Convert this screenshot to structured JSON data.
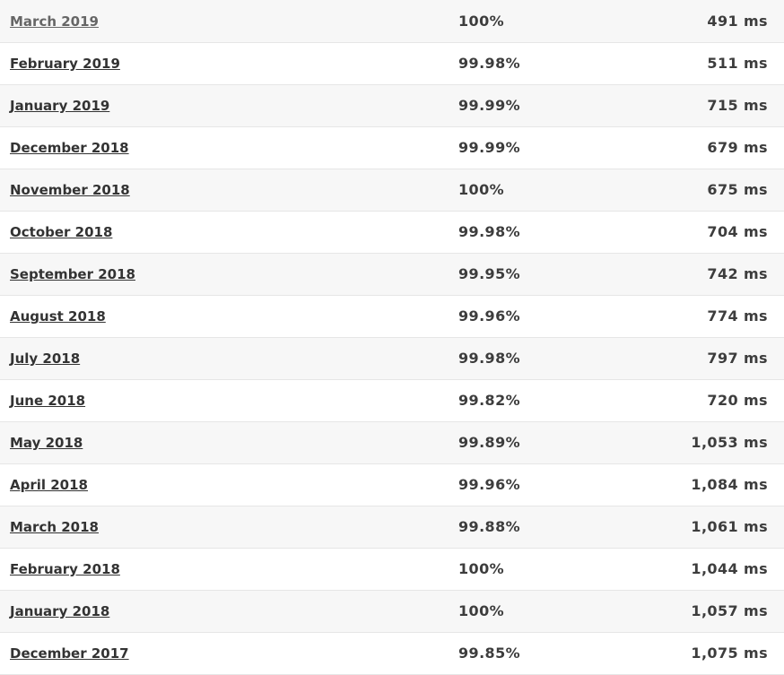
{
  "rows": [
    {
      "month": "March 2019",
      "uptime": "100%",
      "response": "491 ms"
    },
    {
      "month": "February 2019",
      "uptime": "99.98%",
      "response": "511 ms"
    },
    {
      "month": "January 2019",
      "uptime": "99.99%",
      "response": "715 ms"
    },
    {
      "month": "December 2018",
      "uptime": "99.99%",
      "response": "679 ms"
    },
    {
      "month": "November 2018",
      "uptime": "100%",
      "response": "675 ms"
    },
    {
      "month": "October 2018",
      "uptime": "99.98%",
      "response": "704 ms"
    },
    {
      "month": "September 2018",
      "uptime": "99.95%",
      "response": "742 ms"
    },
    {
      "month": "August 2018",
      "uptime": "99.96%",
      "response": "774 ms"
    },
    {
      "month": "July 2018",
      "uptime": "99.98%",
      "response": "797 ms"
    },
    {
      "month": "June 2018",
      "uptime": "99.82%",
      "response": "720 ms"
    },
    {
      "month": "May 2018",
      "uptime": "99.89%",
      "response": "1,053 ms"
    },
    {
      "month": "April 2018",
      "uptime": "99.96%",
      "response": "1,084 ms"
    },
    {
      "month": "March 2018",
      "uptime": "99.88%",
      "response": "1,061 ms"
    },
    {
      "month": "February 2018",
      "uptime": "100%",
      "response": "1,044 ms"
    },
    {
      "month": "January 2018",
      "uptime": "100%",
      "response": "1,057 ms"
    },
    {
      "month": "December 2017",
      "uptime": "99.85%",
      "response": "1,075 ms"
    }
  ]
}
